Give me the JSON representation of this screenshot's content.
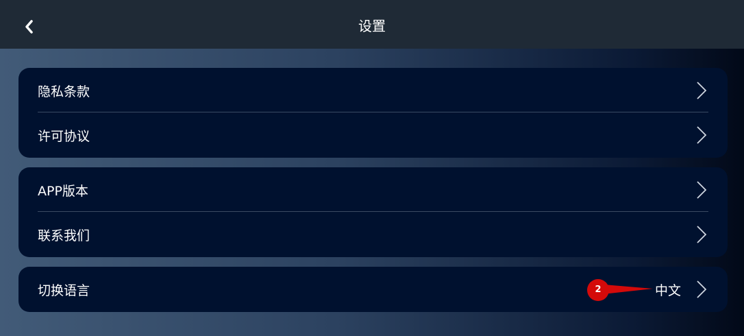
{
  "header": {
    "title": "设置",
    "back_icon": "chevron-left-icon"
  },
  "groups": [
    {
      "items": [
        {
          "label": "隐私条款"
        },
        {
          "label": "许可协议"
        }
      ]
    },
    {
      "items": [
        {
          "label": "APP版本"
        },
        {
          "label": "联系我们"
        }
      ]
    },
    {
      "items": [
        {
          "label": "切换语言",
          "value": "中文"
        }
      ]
    }
  ],
  "annotation": {
    "label": "2",
    "color": "#d40a0a"
  },
  "colors": {
    "header": "#1f2a36",
    "card": "#00112f"
  }
}
